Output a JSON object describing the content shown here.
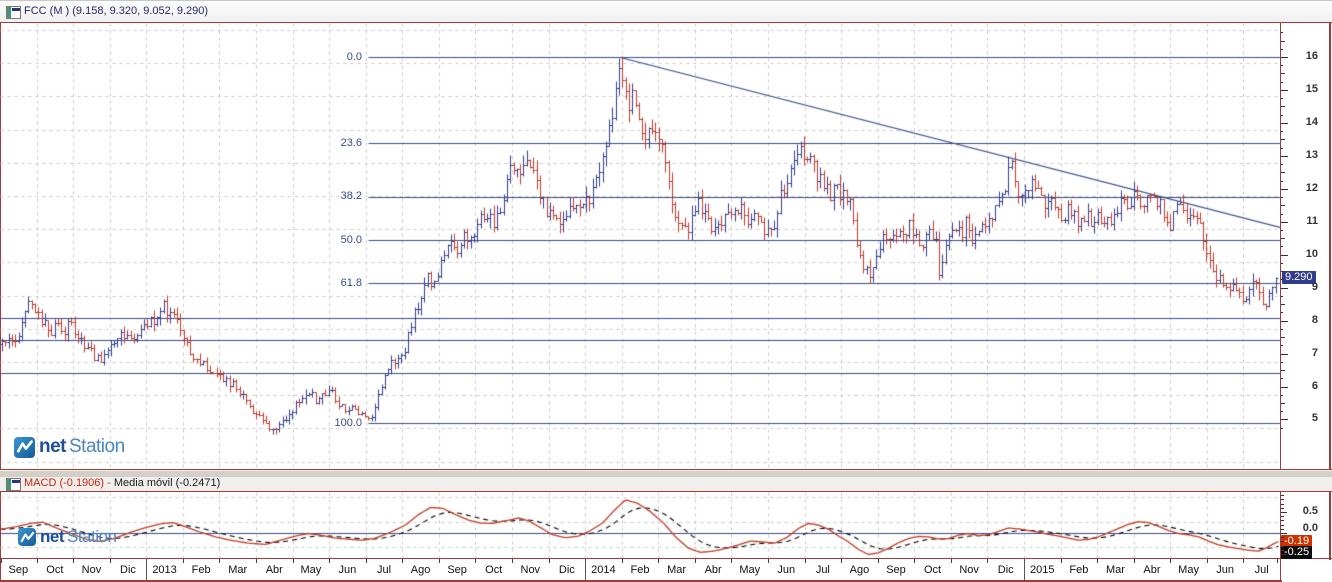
{
  "window": {
    "title": "FCC (M ) (9.158, 9.320, 9.052, 9.290)"
  },
  "branding": {
    "logo_bold": "net",
    "logo_light": "Station"
  },
  "indicator_header": {
    "macd_label": "MACD (-0.1906)",
    "separator": "-",
    "signal_label": "Media móvil (-0.2471)"
  },
  "colors": {
    "panel_border": "#9e3b3b",
    "line_navy": "#374b8c",
    "grid": "#c8c8c8",
    "up_bar": "#323c8c",
    "down_bar": "#bf3b2a",
    "macd_line": "#c03a22",
    "signal_line": "#000000",
    "last_price_badge_bg": "#2f3c8e",
    "macd_badge_bg": "#cc3300",
    "signal_badge_bg": "#0a0a0a"
  },
  "chart_data": [
    {
      "type": "ohlc-bar",
      "title": "FCC (M ) (9.158, 9.320, 9.052, 9.290)",
      "symbol": "FCC",
      "last_ohlc": {
        "open": 9.158,
        "high": 9.32,
        "low": 9.052,
        "close": 9.29
      },
      "last_price_label": "9.290",
      "ylim": [
        3.5,
        17.0
      ],
      "y_ticks": [
        16,
        15,
        14,
        13,
        12,
        11,
        10,
        9,
        8,
        7,
        6,
        5
      ],
      "grid": true,
      "x_labels": [
        "Sep",
        "Oct",
        "Nov",
        "Dic",
        "2013",
        "Feb",
        "Mar",
        "Abr",
        "May",
        "Jun",
        "Jul",
        "Ago",
        "Sep",
        "Oct",
        "Nov",
        "Dic",
        "2014",
        "Feb",
        "Mar",
        "Abr",
        "May",
        "Jun",
        "Jul",
        "Ago",
        "Sep",
        "Oct",
        "Nov",
        "Dic",
        "2015",
        "Feb",
        "Mar",
        "Abr",
        "May",
        "Jun",
        "Jul"
      ],
      "year_label_indices": [
        4,
        16,
        28
      ],
      "fibonacci": {
        "high": 16.0,
        "low": 4.88,
        "levels": [
          0.0,
          23.6,
          38.2,
          50.0,
          61.8,
          100.0
        ],
        "label_right_x": 362,
        "line_start_x": 368
      },
      "support_lines": [
        8.09,
        7.4,
        6.42
      ],
      "trendline": {
        "x1": 620,
        "price1": 16.0,
        "x2": 1280,
        "price2": 10.84
      },
      "price_path": [
        [
          0,
          7.2
        ],
        [
          8,
          7.5
        ],
        [
          15,
          7.4
        ],
        [
          22,
          7.9
        ],
        [
          28,
          8.4
        ],
        [
          33,
          8.6
        ],
        [
          38,
          8.2
        ],
        [
          45,
          7.9
        ],
        [
          52,
          7.7
        ],
        [
          58,
          7.9
        ],
        [
          64,
          7.7
        ],
        [
          70,
          7.9
        ],
        [
          78,
          7.5
        ],
        [
          85,
          7.3
        ],
        [
          92,
          7.0
        ],
        [
          100,
          6.8
        ],
        [
          108,
          7.1
        ],
        [
          115,
          7.5
        ],
        [
          122,
          7.7
        ],
        [
          130,
          7.5
        ],
        [
          138,
          7.6
        ],
        [
          147,
          7.9
        ],
        [
          155,
          8.1
        ],
        [
          162,
          8.5
        ],
        [
          168,
          8.3
        ],
        [
          175,
          8.1
        ],
        [
          182,
          7.7
        ],
        [
          190,
          7.0
        ],
        [
          197,
          6.7
        ],
        [
          204,
          6.6
        ],
        [
          212,
          6.4
        ],
        [
          220,
          6.3
        ],
        [
          228,
          6.2
        ],
        [
          236,
          5.9
        ],
        [
          244,
          5.6
        ],
        [
          252,
          5.3
        ],
        [
          260,
          5.0
        ],
        [
          268,
          4.8
        ],
        [
          275,
          4.7
        ],
        [
          282,
          4.9
        ],
        [
          290,
          5.2
        ],
        [
          297,
          5.5
        ],
        [
          304,
          5.7
        ],
        [
          310,
          5.8
        ],
        [
          316,
          5.6
        ],
        [
          322,
          5.8
        ],
        [
          328,
          5.9
        ],
        [
          334,
          5.7
        ],
        [
          340,
          5.4
        ],
        [
          346,
          5.3
        ],
        [
          352,
          5.5
        ],
        [
          358,
          5.2
        ],
        [
          364,
          5.1
        ],
        [
          370,
          5.0
        ],
        [
          375,
          5.3
        ],
        [
          380,
          6.0
        ],
        [
          386,
          6.4
        ],
        [
          392,
          6.7
        ],
        [
          398,
          6.9
        ],
        [
          404,
          7.1
        ],
        [
          410,
          7.8
        ],
        [
          416,
          8.3
        ],
        [
          422,
          8.8
        ],
        [
          428,
          9.3
        ],
        [
          434,
          9.0
        ],
        [
          440,
          9.6
        ],
        [
          446,
          10.3
        ],
        [
          452,
          10.5
        ],
        [
          458,
          10.2
        ],
        [
          464,
          10.6
        ],
        [
          470,
          10.4
        ],
        [
          476,
          10.8
        ],
        [
          482,
          11.1
        ],
        [
          488,
          11.3
        ],
        [
          494,
          11.0
        ],
        [
          500,
          11.4
        ],
        [
          506,
          12.2
        ],
        [
          512,
          12.9
        ],
        [
          518,
          12.5
        ],
        [
          524,
          12.8
        ],
        [
          530,
          12.5
        ],
        [
          536,
          12.2
        ],
        [
          542,
          11.7
        ],
        [
          548,
          11.2
        ],
        [
          554,
          11.1
        ],
        [
          560,
          11.0
        ],
        [
          566,
          11.3
        ],
        [
          572,
          11.4
        ],
        [
          578,
          11.6
        ],
        [
          584,
          11.8
        ],
        [
          590,
          11.6
        ],
        [
          596,
          12.2
        ],
        [
          602,
          12.9
        ],
        [
          608,
          13.5
        ],
        [
          613,
          14.5
        ],
        [
          618,
          15.8
        ],
        [
          623,
          15.2
        ],
        [
          628,
          14.4
        ],
        [
          633,
          14.8
        ],
        [
          638,
          14.0
        ],
        [
          644,
          13.7
        ],
        [
          650,
          14.0
        ],
        [
          656,
          13.6
        ],
        [
          662,
          13.2
        ],
        [
          668,
          12.2
        ],
        [
          674,
          11.4
        ],
        [
          680,
          11.0
        ],
        [
          686,
          10.7
        ],
        [
          692,
          11.2
        ],
        [
          698,
          11.6
        ],
        [
          704,
          11.2
        ],
        [
          710,
          10.8
        ],
        [
          716,
          11.0
        ],
        [
          722,
          10.8
        ],
        [
          728,
          11.3
        ],
        [
          734,
          11.1
        ],
        [
          740,
          11.5
        ],
        [
          746,
          11.2
        ],
        [
          752,
          11.0
        ],
        [
          758,
          11.2
        ],
        [
          764,
          10.8
        ],
        [
          770,
          10.7
        ],
        [
          776,
          11.2
        ],
        [
          782,
          11.9
        ],
        [
          788,
          12.4
        ],
        [
          794,
          12.9
        ],
        [
          800,
          13.3
        ],
        [
          806,
          13.0
        ],
        [
          812,
          12.7
        ],
        [
          818,
          12.4
        ],
        [
          824,
          12.1
        ],
        [
          830,
          11.9
        ],
        [
          836,
          12.1
        ],
        [
          842,
          11.7
        ],
        [
          848,
          11.9
        ],
        [
          853,
          11.0
        ],
        [
          858,
          10.0
        ],
        [
          863,
          9.6
        ],
        [
          868,
          9.4
        ],
        [
          874,
          9.6
        ],
        [
          880,
          10.2
        ],
        [
          886,
          10.6
        ],
        [
          892,
          10.4
        ],
        [
          898,
          10.8
        ],
        [
          904,
          10.5
        ],
        [
          910,
          10.9
        ],
        [
          916,
          10.6
        ],
        [
          922,
          10.4
        ],
        [
          928,
          10.7
        ],
        [
          934,
          10.5
        ],
        [
          938,
          10.3
        ],
        [
          940,
          8.9
        ],
        [
          944,
          10.2
        ],
        [
          948,
          10.5
        ],
        [
          954,
          10.8
        ],
        [
          960,
          10.6
        ],
        [
          966,
          11.0
        ],
        [
          972,
          10.3
        ],
        [
          978,
          10.5
        ],
        [
          984,
          10.9
        ],
        [
          990,
          11.2
        ],
        [
          996,
          11.4
        ],
        [
          1002,
          11.7
        ],
        [
          1007,
          12.2
        ],
        [
          1011,
          13.2
        ],
        [
          1015,
          12.2
        ],
        [
          1020,
          11.6
        ],
        [
          1026,
          11.9
        ],
        [
          1032,
          12.2
        ],
        [
          1038,
          11.9
        ],
        [
          1044,
          11.6
        ],
        [
          1050,
          11.8
        ],
        [
          1056,
          11.5
        ],
        [
          1062,
          11.2
        ],
        [
          1068,
          11.4
        ],
        [
          1074,
          11.2
        ],
        [
          1080,
          11.0
        ],
        [
          1086,
          11.2
        ],
        [
          1092,
          10.9
        ],
        [
          1098,
          11.1
        ],
        [
          1104,
          10.9
        ],
        [
          1110,
          11.1
        ],
        [
          1116,
          11.4
        ],
        [
          1122,
          11.6
        ],
        [
          1128,
          11.4
        ],
        [
          1134,
          11.7
        ],
        [
          1140,
          11.5
        ],
        [
          1146,
          11.8
        ],
        [
          1152,
          11.5
        ],
        [
          1158,
          11.7
        ],
        [
          1164,
          11.2
        ],
        [
          1170,
          10.9
        ],
        [
          1176,
          11.3
        ],
        [
          1182,
          11.5
        ],
        [
          1188,
          11.3
        ],
        [
          1194,
          11.1
        ],
        [
          1200,
          10.9
        ],
        [
          1205,
          10.4
        ],
        [
          1210,
          9.8
        ],
        [
          1215,
          9.4
        ],
        [
          1220,
          9.2
        ],
        [
          1226,
          9.0
        ],
        [
          1232,
          9.1
        ],
        [
          1238,
          8.8
        ],
        [
          1244,
          8.6
        ],
        [
          1249,
          8.9
        ],
        [
          1253,
          9.4
        ],
        [
          1257,
          9.0
        ],
        [
          1261,
          8.5
        ],
        [
          1265,
          8.2
        ],
        [
          1269,
          8.7
        ],
        [
          1273,
          9.1
        ],
        [
          1277,
          9.29
        ]
      ]
    },
    {
      "type": "line",
      "name": "MACD",
      "series": [
        {
          "name": "MACD",
          "last": -0.1906
        },
        {
          "name": "Media móvil",
          "last": -0.2471
        }
      ],
      "y_ticks": [
        0.5,
        0.0
      ],
      "y_tick_labels": [
        "0.5",
        "0.0"
      ],
      "badge_labels": [
        "-0.19",
        "-0.25"
      ],
      "zero_line": 0.0,
      "path": [
        [
          0,
          0.1
        ],
        [
          15,
          0.16
        ],
        [
          30,
          0.24
        ],
        [
          42,
          0.27
        ],
        [
          55,
          0.14
        ],
        [
          70,
          0.0
        ],
        [
          85,
          -0.13
        ],
        [
          100,
          -0.19
        ],
        [
          115,
          -0.11
        ],
        [
          130,
          0.03
        ],
        [
          145,
          0.14
        ],
        [
          160,
          0.23
        ],
        [
          172,
          0.26
        ],
        [
          185,
          0.16
        ],
        [
          200,
          0.03
        ],
        [
          215,
          -0.08
        ],
        [
          230,
          -0.16
        ],
        [
          248,
          -0.23
        ],
        [
          265,
          -0.26
        ],
        [
          280,
          -0.16
        ],
        [
          295,
          -0.06
        ],
        [
          308,
          0.0
        ],
        [
          320,
          -0.04
        ],
        [
          335,
          -0.11
        ],
        [
          350,
          -0.14
        ],
        [
          362,
          -0.16
        ],
        [
          375,
          -0.11
        ],
        [
          390,
          0.03
        ],
        [
          405,
          0.2
        ],
        [
          418,
          0.45
        ],
        [
          430,
          0.62
        ],
        [
          442,
          0.6
        ],
        [
          455,
          0.45
        ],
        [
          468,
          0.32
        ],
        [
          480,
          0.25
        ],
        [
          492,
          0.24
        ],
        [
          505,
          0.3
        ],
        [
          518,
          0.37
        ],
        [
          528,
          0.3
        ],
        [
          540,
          0.14
        ],
        [
          552,
          -0.03
        ],
        [
          565,
          -0.1
        ],
        [
          578,
          -0.06
        ],
        [
          590,
          0.07
        ],
        [
          602,
          0.25
        ],
        [
          615,
          0.58
        ],
        [
          625,
          0.8
        ],
        [
          637,
          0.72
        ],
        [
          650,
          0.52
        ],
        [
          663,
          0.25
        ],
        [
          675,
          -0.08
        ],
        [
          688,
          -0.35
        ],
        [
          700,
          -0.45
        ],
        [
          713,
          -0.42
        ],
        [
          726,
          -0.35
        ],
        [
          738,
          -0.27
        ],
        [
          750,
          -0.18
        ],
        [
          762,
          -0.2
        ],
        [
          774,
          -0.23
        ],
        [
          786,
          -0.1
        ],
        [
          798,
          0.12
        ],
        [
          808,
          0.24
        ],
        [
          818,
          0.2
        ],
        [
          828,
          0.1
        ],
        [
          838,
          -0.06
        ],
        [
          848,
          -0.2
        ],
        [
          858,
          -0.38
        ],
        [
          868,
          -0.5
        ],
        [
          878,
          -0.46
        ],
        [
          888,
          -0.35
        ],
        [
          898,
          -0.22
        ],
        [
          908,
          -0.12
        ],
        [
          918,
          -0.07
        ],
        [
          928,
          -0.08
        ],
        [
          938,
          -0.13
        ],
        [
          948,
          -0.12
        ],
        [
          958,
          -0.04
        ],
        [
          968,
          0.0
        ],
        [
          978,
          -0.05
        ],
        [
          988,
          -0.03
        ],
        [
          998,
          0.05
        ],
        [
          1008,
          0.13
        ],
        [
          1018,
          0.11
        ],
        [
          1028,
          0.07
        ],
        [
          1038,
          0.03
        ],
        [
          1048,
          -0.02
        ],
        [
          1058,
          -0.06
        ],
        [
          1068,
          -0.11
        ],
        [
          1078,
          -0.16
        ],
        [
          1088,
          -0.14
        ],
        [
          1098,
          -0.08
        ],
        [
          1108,
          0.02
        ],
        [
          1118,
          0.12
        ],
        [
          1128,
          0.22
        ],
        [
          1138,
          0.28
        ],
        [
          1148,
          0.26
        ],
        [
          1158,
          0.17
        ],
        [
          1168,
          0.07
        ],
        [
          1178,
          0.0
        ],
        [
          1188,
          -0.03
        ],
        [
          1198,
          -0.08
        ],
        [
          1208,
          -0.18
        ],
        [
          1218,
          -0.27
        ],
        [
          1228,
          -0.32
        ],
        [
          1238,
          -0.36
        ],
        [
          1248,
          -0.4
        ],
        [
          1258,
          -0.42
        ],
        [
          1266,
          -0.34
        ],
        [
          1272,
          -0.26
        ],
        [
          1278,
          -0.19
        ]
      ]
    }
  ]
}
